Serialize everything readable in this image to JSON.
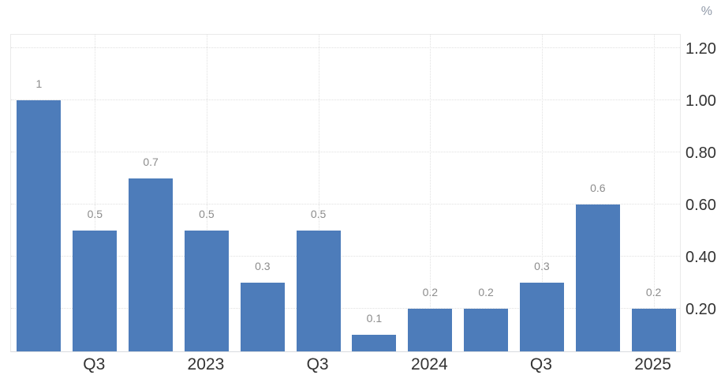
{
  "chart_data": {
    "type": "bar",
    "title": "",
    "unit": "%",
    "categories": [
      "",
      "Q3",
      "",
      "2023",
      "",
      "Q3",
      "",
      "2024",
      "",
      "Q3",
      "",
      "2025"
    ],
    "values": [
      1,
      0.5,
      0.7,
      0.5,
      0.3,
      0.5,
      0.1,
      0.2,
      0.2,
      0.3,
      0.6,
      0.2
    ],
    "bar_labels": [
      "1",
      "0.5",
      "0.7",
      "0.5",
      "0.3",
      "0.5",
      "0.1",
      "0.2",
      "0.2",
      "0.3",
      "0.6",
      "0.2"
    ],
    "y_ticks": [
      {
        "value": 0.2,
        "label": "0.20"
      },
      {
        "value": 0.4,
        "label": "0.40"
      },
      {
        "value": 0.6,
        "label": "0.60"
      },
      {
        "value": 0.8,
        "label": "0.80"
      },
      {
        "value": 1.0,
        "label": "1.00"
      },
      {
        "value": 1.2,
        "label": "1.20"
      }
    ],
    "ylim": [
      0.035,
      1.256
    ],
    "grid": true,
    "legend": false,
    "y_axis_side": "right"
  },
  "colors": {
    "bar": "#4d7cba",
    "bar_value_label": "#8c8c8c",
    "axis_tick_label": "#333333",
    "unit_label": "#9099a8",
    "gridline": "#e0e0e0",
    "plot_border": "#eaeaea",
    "axis_line": "#d8dbe0",
    "background": "#ffffff"
  }
}
